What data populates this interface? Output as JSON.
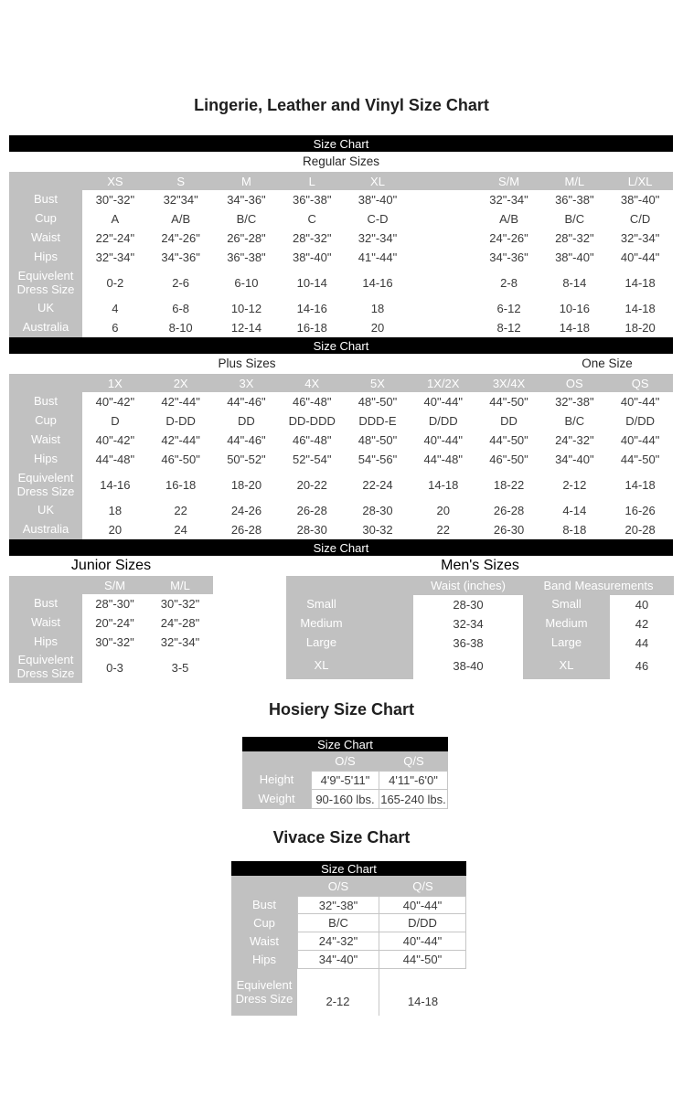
{
  "bar_label": "Size Chart",
  "colors": {
    "page_bg": "#ffffff",
    "bar_bg": "#000000",
    "bar_text": "#ffffff",
    "header_bg": "#c1c1c1",
    "header_text": "#ffffff",
    "data_text": "#3a3a3a"
  },
  "main": {
    "title": "Lingerie, Leather and Vinyl Size Chart",
    "sections": {
      "regular": {
        "label": "Regular Sizes",
        "columns": [
          "XS",
          "S",
          "M",
          "L",
          "XL",
          "",
          "S/M",
          "M/L",
          "L/XL"
        ],
        "rows": [
          {
            "label": "Bust",
            "values": [
              "30\"-32\"",
              "32\"34\"",
              "34\"-36\"",
              "36\"-38\"",
              "38\"-40\"",
              "",
              "32\"-34\"",
              "36\"-38\"",
              "38\"-40\""
            ]
          },
          {
            "label": "Cup",
            "values": [
              "A",
              "A/B",
              "B/C",
              "C",
              "C-D",
              "",
              "A/B",
              "B/C",
              "C/D"
            ]
          },
          {
            "label": "Waist",
            "values": [
              "22\"-24\"",
              "24\"-26\"",
              "26\"-28\"",
              "28\"-32\"",
              "32\"-34\"",
              "",
              "24\"-26\"",
              "28\"-32\"",
              "32\"-34\""
            ]
          },
          {
            "label": "Hips",
            "values": [
              "32\"-34\"",
              "34\"-36\"",
              "36\"-38\"",
              "38\"-40\"",
              "41\"-44\"",
              "",
              "34\"-36\"",
              "38\"-40\"",
              "40\"-44\""
            ]
          },
          {
            "label": "Equivelent Dress Size",
            "values": [
              "0-2",
              "2-6",
              "6-10",
              "10-14",
              "14-16",
              "",
              "2-8",
              "8-14",
              "14-18"
            ]
          },
          {
            "label": "UK",
            "values": [
              "4",
              "6-8",
              "10-12",
              "14-16",
              "18",
              "",
              "6-12",
              "10-16",
              "14-18"
            ]
          },
          {
            "label": "Australia",
            "values": [
              "6",
              "8-10",
              "12-14",
              "16-18",
              "20",
              "",
              "8-12",
              "14-18",
              "18-20"
            ]
          }
        ]
      },
      "plus": {
        "label": "Plus Sizes",
        "label_right": "One Size",
        "columns": [
          "1X",
          "2X",
          "3X",
          "4X",
          "5X",
          "1X/2X",
          "3X/4X",
          "OS",
          "QS"
        ],
        "rows": [
          {
            "label": "Bust",
            "values": [
              "40\"-42\"",
              "42\"-44\"",
              "44\"-46\"",
              "46\"-48\"",
              "48\"-50\"",
              "40\"-44\"",
              "44\"-50\"",
              "32\"-38\"",
              "40\"-44\""
            ]
          },
          {
            "label": "Cup",
            "values": [
              "D",
              "D-DD",
              "DD",
              "DD-DDD",
              "DDD-E",
              "D/DD",
              "DD",
              "B/C",
              "D/DD"
            ]
          },
          {
            "label": "Waist",
            "values": [
              "40\"-42\"",
              "42\"-44\"",
              "44\"-46\"",
              "46\"-48\"",
              "48\"-50\"",
              "40\"-44\"",
              "44\"-50\"",
              "24\"-32\"",
              "40\"-44\""
            ]
          },
          {
            "label": "Hips",
            "values": [
              "44\"-48\"",
              "46\"-50\"",
              "50\"-52\"",
              "52\"-54\"",
              "54\"-56\"",
              "44\"-48\"",
              "46\"-50\"",
              "34\"-40\"",
              "44\"-50\""
            ]
          },
          {
            "label": "Equivelent Dress Size",
            "values": [
              "14-16",
              "16-18",
              "18-20",
              "20-22",
              "22-24",
              "14-18",
              "18-22",
              "2-12",
              "14-18"
            ]
          },
          {
            "label": "UK",
            "values": [
              "18",
              "22",
              "24-26",
              "26-28",
              "28-30",
              "20",
              "26-28",
              "4-14",
              "16-26"
            ]
          },
          {
            "label": "Australia",
            "values": [
              "20",
              "24",
              "26-28",
              "28-30",
              "30-32",
              "22",
              "26-30",
              "8-18",
              "20-28"
            ]
          }
        ]
      },
      "junior": {
        "label": "Junior Sizes",
        "columns": [
          "S/M",
          "M/L"
        ],
        "rows": [
          {
            "label": "Bust",
            "values": [
              "28\"-30\"",
              "30\"-32\""
            ]
          },
          {
            "label": "Waist",
            "values": [
              "20\"-24\"",
              "24\"-28\""
            ]
          },
          {
            "label": "Hips",
            "values": [
              "30\"-32\"",
              "32\"-34\""
            ]
          },
          {
            "label": "Equivelent Dress Size",
            "values": [
              "0-3",
              "3-5"
            ]
          }
        ]
      },
      "mens": {
        "label": "Men's Sizes",
        "waist_header": "Waist (inches)",
        "band_header": "Band Measurements",
        "rows": [
          {
            "size": "Small",
            "waist": "28-30",
            "band": "40"
          },
          {
            "size": "Medium",
            "waist": "32-34",
            "band": "42"
          },
          {
            "size": "Large",
            "waist": "36-38",
            "band": "44"
          },
          {
            "size": "XL",
            "waist": "38-40",
            "band": "46"
          }
        ]
      }
    }
  },
  "hosiery": {
    "title": "Hosiery Size Chart",
    "columns": [
      "O/S",
      "Q/S"
    ],
    "rows": [
      {
        "label": "Height",
        "values": [
          "4'9\"-5'11\"",
          "4'11\"-6'0\""
        ]
      },
      {
        "label": "Weight",
        "values": [
          "90-160 lbs.",
          "165-240 lbs."
        ]
      }
    ]
  },
  "vivace": {
    "title": "Vivace Size Chart",
    "columns": [
      "O/S",
      "Q/S"
    ],
    "rows": [
      {
        "label": "Bust",
        "values": [
          "32\"-38\"",
          "40\"-44\""
        ]
      },
      {
        "label": "Cup",
        "values": [
          "B/C",
          "D/DD"
        ]
      },
      {
        "label": "Waist",
        "values": [
          "24\"-32\"",
          "40\"-44\""
        ]
      },
      {
        "label": "Hips",
        "values": [
          "34\"-40\"",
          "44\"-50\""
        ]
      },
      {
        "label": "Equivelent Dress Size",
        "values": [
          "2-12",
          "14-18"
        ]
      }
    ]
  }
}
